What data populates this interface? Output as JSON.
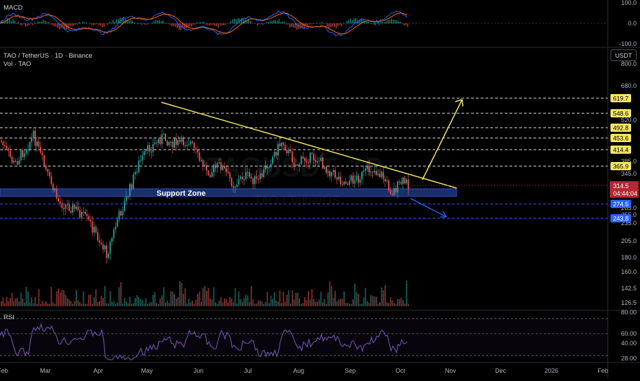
{
  "header": {
    "symbol": "TAO / TetherUS · 1D · Binance",
    "volume_label": "Vol · TAO",
    "currency": "USDT"
  },
  "watermark": {
    "ticker": "TAOUSDT, 1D",
    "name": "TAO / TetherUS"
  },
  "macd": {
    "label": "MACD",
    "ticks": [
      "100.0",
      "0.0",
      "-100.0"
    ]
  },
  "rsi": {
    "label": "RSI",
    "ticks": [
      "80.00",
      "60.00",
      "40.00",
      "28.00"
    ]
  },
  "price_axis_ticks": [
    "800.0",
    "680.0",
    "520.0",
    "385.0",
    "345.0",
    "285.0",
    "255.0",
    "235.0",
    "205.0",
    "180.0",
    "160.0",
    "142.5",
    "126.5"
  ],
  "x_axis_labels": [
    "Feb",
    "Mar",
    "Apr",
    "May",
    "Jun",
    "Jul",
    "Aug",
    "Sep",
    "Oct",
    "Nov",
    "Dec",
    "2026",
    "Feb"
  ],
  "support_zone_label": "Support Zone",
  "current_price": {
    "value": "314.5",
    "countdown": "04:44:04"
  },
  "levels": [
    {
      "label": "619.7",
      "kind": "resistance"
    },
    {
      "label": "548.6",
      "kind": "resistance"
    },
    {
      "label": "492.8",
      "kind": "resistance"
    },
    {
      "label": "453.6",
      "kind": "resistance"
    },
    {
      "label": "414.4",
      "kind": "resistance"
    },
    {
      "label": "365.9",
      "kind": "resistance"
    },
    {
      "label": "274.5",
      "kind": "support"
    },
    {
      "label": "243.8",
      "kind": "support"
    }
  ],
  "colors": {
    "bull": "#26a69a",
    "bear": "#ef5350",
    "trendline": "#f5e663",
    "resistance_badge": "#f5e663",
    "support_badge": "#2962ff",
    "support_zone": "#1e3a8a",
    "macd_line": "#2962ff",
    "signal_line": "#ff6d00",
    "rsi_line": "#7e57c2",
    "price_badge": "#b22833"
  },
  "chart_data": {
    "type": "candlestick",
    "title": "TAO / TetherUS · 1D · Binance",
    "x": [
      "Feb",
      "Mar",
      "Apr",
      "May",
      "Jun",
      "Jul",
      "Aug",
      "Sep",
      "Oct",
      "Nov",
      "Dec",
      "2026",
      "Feb"
    ],
    "price_levels": [
      619.7,
      548.6,
      492.8,
      453.6,
      414.4,
      365.9,
      274.5,
      243.8
    ],
    "current_price": 314.5,
    "support_zone": [
      290,
      310
    ],
    "approx_close_path": [
      {
        "x": "Feb",
        "y": 340
      },
      {
        "x": "Mar",
        "y": 300
      },
      {
        "x": "Apr",
        "y": 210
      },
      {
        "x": "May",
        "y": 440
      },
      {
        "x": "Jun",
        "y": 370
      },
      {
        "x": "Jul",
        "y": 345
      },
      {
        "x": "Aug",
        "y": 375
      },
      {
        "x": "Sep",
        "y": 330
      },
      {
        "x": "Oct",
        "y": 314.5
      }
    ],
    "rsi_range": [
      28,
      80
    ],
    "macd_range": [
      -100,
      100
    ]
  }
}
